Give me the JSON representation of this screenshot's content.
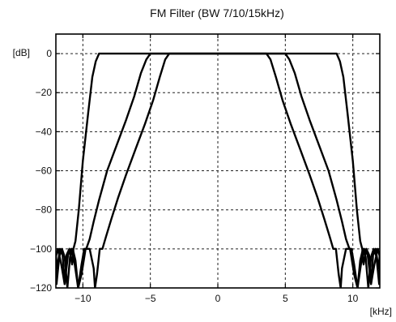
{
  "chart_data": {
    "type": "line",
    "title": "FM Filter (BW 7/10/15kHz)",
    "xlabel": "[kHz]",
    "ylabel": "[dB]",
    "xlim": [
      -12,
      12
    ],
    "ylim": [
      -120,
      10
    ],
    "x_ticks": [
      -10,
      -5,
      0,
      5,
      10
    ],
    "x_tick_labels": [
      "−10",
      "−5",
      "0",
      "5",
      "10"
    ],
    "y_ticks": [
      0,
      -20,
      -40,
      -60,
      -80,
      -100,
      -120
    ],
    "y_tick_labels": [
      "0",
      "−20",
      "−40",
      "−60",
      "−80",
      "−100",
      "−120"
    ],
    "grid": true,
    "series": [
      {
        "x": [
          0,
          8.8,
          9.05,
          9.3,
          9.6,
          10.0,
          10.3,
          10.55,
          10.7,
          10.8,
          11.0,
          11.2,
          11.35,
          11.5,
          11.7,
          11.9,
          12.0
        ],
        "y": [
          0,
          0,
          -4,
          -12,
          -30,
          -55,
          -80,
          -96,
          -100,
          -108,
          -100,
          -103,
          -118,
          -103,
          -100,
          -110,
          -103
        ]
      },
      {
        "x": [
          0,
          5.0,
          5.3,
          5.7,
          6.2,
          6.8,
          7.5,
          8.2,
          8.8,
          9.2,
          9.5,
          9.75,
          9.9,
          10.1,
          10.35,
          10.55,
          10.75,
          10.95,
          11.15,
          11.35,
          11.55,
          11.75,
          11.95,
          12.0
        ],
        "y": [
          0,
          0,
          -3,
          -10,
          -22,
          -34,
          -47,
          -60,
          -75,
          -86,
          -95,
          -100,
          -100,
          -108,
          -120,
          -106,
          -100,
          -104,
          -120,
          -104,
          -100,
          -104,
          -118,
          -110
        ]
      },
      {
        "x": [
          0,
          3.6,
          3.9,
          4.3,
          4.8,
          5.4,
          6.1,
          6.8,
          7.4,
          7.9,
          8.3,
          8.55,
          8.75,
          8.95,
          9.1,
          9.2,
          9.5,
          9.8,
          10.1,
          10.35,
          10.6,
          10.85,
          11.1,
          11.35,
          11.6,
          11.85,
          12.0
        ],
        "y": [
          0,
          0,
          -3,
          -12,
          -24,
          -36,
          -49,
          -62,
          -74,
          -85,
          -94,
          -100,
          -100,
          -113,
          -120,
          -110,
          -100,
          -100,
          -113,
          -120,
          -108,
          -100,
          -103,
          -118,
          -108,
          -100,
          -104
        ]
      }
    ]
  }
}
